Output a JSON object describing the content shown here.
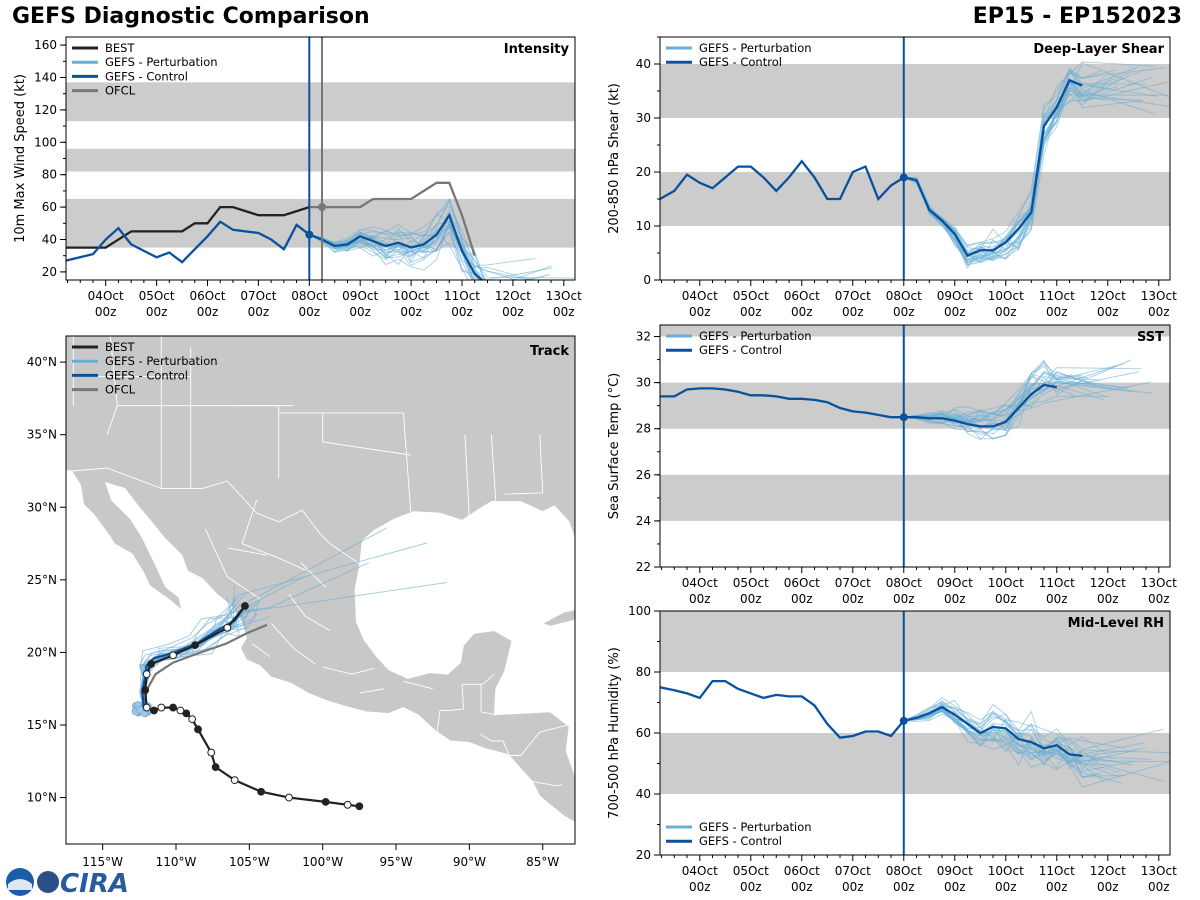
{
  "header": {
    "title": "GEFS Diagnostic Comparison",
    "storm_id": "EP15 - EP152023"
  },
  "colors": {
    "best": "#222222",
    "perturbation": "#6aaed6",
    "control": "#08519c",
    "ofcl": "#777777",
    "band": "#cccccc",
    "land": "#c8c8c8"
  },
  "logo": {
    "text": "CIRA"
  },
  "time_axis": {
    "tick_labels": [
      [
        "04Oct",
        "00z"
      ],
      [
        "05Oct",
        "00z"
      ],
      [
        "06Oct",
        "00z"
      ],
      [
        "07Oct",
        "00z"
      ],
      [
        "08Oct",
        "00z"
      ],
      [
        "09Oct",
        "00z"
      ],
      [
        "10Oct",
        "00z"
      ],
      [
        "11Oct",
        "00z"
      ],
      [
        "12Oct",
        "00z"
      ],
      [
        "13Oct",
        "00z"
      ]
    ],
    "tick_days": [
      1,
      2,
      3,
      4,
      5,
      6,
      7,
      8,
      9,
      10
    ],
    "range_days": [
      0.22,
      10.22
    ],
    "init_day": 5
  },
  "chart_data": [
    {
      "id": "intensity",
      "type": "line",
      "title": "Intensity",
      "ylabel": "10m Max Wind Speed (kt)",
      "ylim": [
        15,
        165
      ],
      "yticks": [
        20,
        40,
        60,
        80,
        100,
        120,
        140,
        160
      ],
      "bands": [
        [
          35,
          65
        ],
        [
          82,
          96
        ],
        [
          113,
          137
        ]
      ],
      "ofcl_vline_day": 5.25,
      "legend": [
        "BEST",
        "GEFS - Perturbation",
        "GEFS - Control",
        "OFCL"
      ],
      "series": [
        {
          "name": "BEST",
          "x": [
            0.22,
            0.5,
            1,
            1.5,
            2,
            2.5,
            2.75,
            3,
            3.25,
            3.5,
            4,
            4.5,
            5
          ],
          "y": [
            35,
            35,
            35,
            45,
            45,
            45,
            50,
            50,
            60,
            60,
            55,
            55,
            60
          ]
        },
        {
          "name": "GEFS - Control",
          "x": [
            0.22,
            0.75,
            1,
            1.25,
            1.5,
            2,
            2.25,
            2.5,
            2.75,
            3,
            3.25,
            3.5,
            4,
            4.25,
            4.5,
            4.75,
            5,
            5.25,
            5.5,
            5.75,
            6,
            6.25,
            6.5,
            6.75,
            7,
            7.25,
            7.5,
            7.75,
            8,
            8.25,
            8.5
          ],
          "y": [
            27,
            31,
            40,
            47,
            37,
            29,
            32,
            26,
            34,
            42,
            51,
            46,
            44,
            40,
            34,
            49,
            43,
            40,
            36,
            37,
            42,
            39,
            36,
            38,
            35,
            37,
            43,
            55,
            33,
            19,
            12
          ]
        },
        {
          "name": "OFCL",
          "x": [
            5,
            5.25,
            5.5,
            5.75,
            6,
            6.25,
            6.5,
            6.75,
            7,
            7.25,
            7.5,
            7.75,
            8,
            8.25
          ],
          "y": [
            60,
            60,
            60,
            60,
            60,
            65,
            65,
            65,
            65,
            70,
            75,
            75,
            55,
            30
          ]
        }
      ]
    },
    {
      "id": "shear",
      "type": "line",
      "title": "Deep-Layer Shear",
      "ylabel": "200-850 hPa Shear (kt)",
      "ylim": [
        0,
        45
      ],
      "yticks": [
        0,
        10,
        20,
        30,
        40
      ],
      "bands": [
        [
          10,
          20
        ],
        [
          30,
          40
        ]
      ],
      "legend": [
        "GEFS - Perturbation",
        "GEFS - Control"
      ],
      "series": [
        {
          "name": "GEFS - Control",
          "x": [
            0.22,
            0.5,
            0.75,
            1,
            1.25,
            1.5,
            1.75,
            2,
            2.25,
            2.5,
            2.75,
            3,
            3.25,
            3.5,
            3.75,
            4,
            4.25,
            4.5,
            4.75,
            5,
            5.25,
            5.5,
            5.75,
            6,
            6.25,
            6.5,
            6.75,
            7,
            7.25,
            7.5,
            7.75,
            8,
            8.25,
            8.5
          ],
          "y": [
            15,
            16.5,
            19.5,
            18,
            17,
            19,
            21,
            21,
            19,
            16.5,
            19,
            22,
            19,
            15,
            15,
            20,
            21,
            15,
            17.5,
            19,
            18.5,
            13,
            11,
            8.5,
            4.5,
            5.5,
            5.5,
            7,
            9.5,
            12.5,
            28.5,
            32,
            37,
            36
          ]
        }
      ]
    },
    {
      "id": "sst",
      "type": "line",
      "title": "SST",
      "ylabel": "Sea Surface Temp (°C)",
      "ylim": [
        22,
        32.5
      ],
      "yticks": [
        22,
        24,
        26,
        28,
        30,
        32
      ],
      "bands": [
        [
          24,
          26
        ],
        [
          28,
          30
        ],
        [
          32,
          32.5
        ]
      ],
      "legend": [
        "GEFS - Perturbation",
        "GEFS - Control"
      ],
      "series": [
        {
          "name": "GEFS - Control",
          "x": [
            0.22,
            0.5,
            0.75,
            1,
            1.25,
            1.5,
            1.75,
            2,
            2.25,
            2.5,
            2.75,
            3,
            3.25,
            3.5,
            3.75,
            4,
            4.25,
            4.5,
            4.75,
            5,
            5.25,
            5.5,
            5.75,
            6,
            6.25,
            6.5,
            6.75,
            7,
            7.25,
            7.5,
            7.75,
            8
          ],
          "y": [
            29.4,
            29.4,
            29.7,
            29.75,
            29.75,
            29.7,
            29.6,
            29.45,
            29.45,
            29.4,
            29.3,
            29.3,
            29.25,
            29.15,
            28.9,
            28.75,
            28.7,
            28.6,
            28.5,
            28.5,
            28.5,
            28.45,
            28.45,
            28.35,
            28.2,
            28.1,
            28.1,
            28.3,
            28.9,
            29.5,
            29.9,
            29.8
          ]
        }
      ]
    },
    {
      "id": "rh",
      "type": "line",
      "title": "Mid-Level RH",
      "ylabel": "700-500 hPa Humidity (%)",
      "ylim": [
        20,
        100
      ],
      "yticks": [
        20,
        40,
        60,
        80,
        100
      ],
      "bands": [
        [
          40,
          60
        ],
        [
          80,
          100
        ]
      ],
      "legend": [
        "GEFS - Perturbation",
        "GEFS - Control"
      ],
      "series": [
        {
          "name": "GEFS - Control",
          "x": [
            0.22,
            0.5,
            0.75,
            1,
            1.25,
            1.5,
            1.75,
            2,
            2.25,
            2.5,
            2.75,
            3,
            3.25,
            3.5,
            3.75,
            4,
            4.25,
            4.5,
            4.75,
            5,
            5.25,
            5.5,
            5.75,
            6,
            6.25,
            6.5,
            6.75,
            7,
            7.25,
            7.5,
            7.75,
            8,
            8.25,
            8.5
          ],
          "y": [
            75,
            74,
            73,
            71.5,
            77,
            77,
            74.5,
            73,
            71.5,
            72.5,
            72,
            72,
            69,
            63,
            58.5,
            59,
            60.5,
            60.5,
            59,
            64,
            65,
            66.5,
            68.5,
            66,
            63,
            60,
            62,
            61.5,
            58,
            57,
            55,
            56,
            53,
            52.5
          ]
        }
      ]
    },
    {
      "id": "track",
      "type": "scatter",
      "title": "Track",
      "lon_range": [
        -117.5,
        -82.8
      ],
      "lat_range": [
        6.8,
        41.8
      ],
      "lon_ticks": [
        -115,
        -110,
        -105,
        -100,
        -95,
        -90,
        -85
      ],
      "lon_tick_labels": [
        "115°W",
        "110°W",
        "105°W",
        "100°W",
        "95°W",
        "90°W",
        "85°W"
      ],
      "lat_ticks": [
        10,
        15,
        20,
        25,
        30,
        35,
        40
      ],
      "lat_tick_labels": [
        "10°N",
        "15°N",
        "20°N",
        "25°N",
        "30°N",
        "35°N",
        "40°N"
      ],
      "legend": [
        "BEST",
        "GEFS - Perturbation",
        "GEFS - Control",
        "OFCL"
      ],
      "best_track": {
        "lon": [
          -97.5,
          -98.3,
          -99.8,
          -102.3,
          -104.2,
          -106.0,
          -107.3,
          -107.6,
          -108.5,
          -108.9,
          -109.3,
          -109.7,
          -110.2,
          -111.0,
          -111.5,
          -112.0,
          -112.1,
          -112.0,
          -111.7,
          -110.2,
          -108.7,
          -106.5,
          -105.3
        ],
        "lat": [
          9.4,
          9.5,
          9.7,
          10.0,
          10.4,
          11.2,
          12.1,
          13.1,
          14.7,
          15.4,
          15.8,
          16.0,
          16.2,
          16.2,
          16.0,
          16.2,
          17.4,
          18.5,
          19.2,
          19.8,
          20.5,
          21.7,
          23.2
        ]
      },
      "control_track": {
        "lon": [
          -112.2,
          -112.3,
          -112.1,
          -112.0,
          -111.5,
          -110.4,
          -108.6,
          -107.2,
          -106.0,
          -105.3
        ],
        "lat": [
          16.2,
          17.3,
          18.3,
          19.1,
          19.6,
          19.9,
          20.6,
          21.5,
          22.2,
          23.2
        ]
      },
      "ofcl_track": {
        "lon": [
          -112.2,
          -112.0,
          -111.4,
          -110.2,
          -108.6,
          -106.6,
          -105.2,
          -103.8
        ],
        "lat": [
          16.2,
          17.4,
          18.5,
          19.3,
          19.9,
          20.6,
          21.3,
          21.9
        ]
      }
    }
  ]
}
